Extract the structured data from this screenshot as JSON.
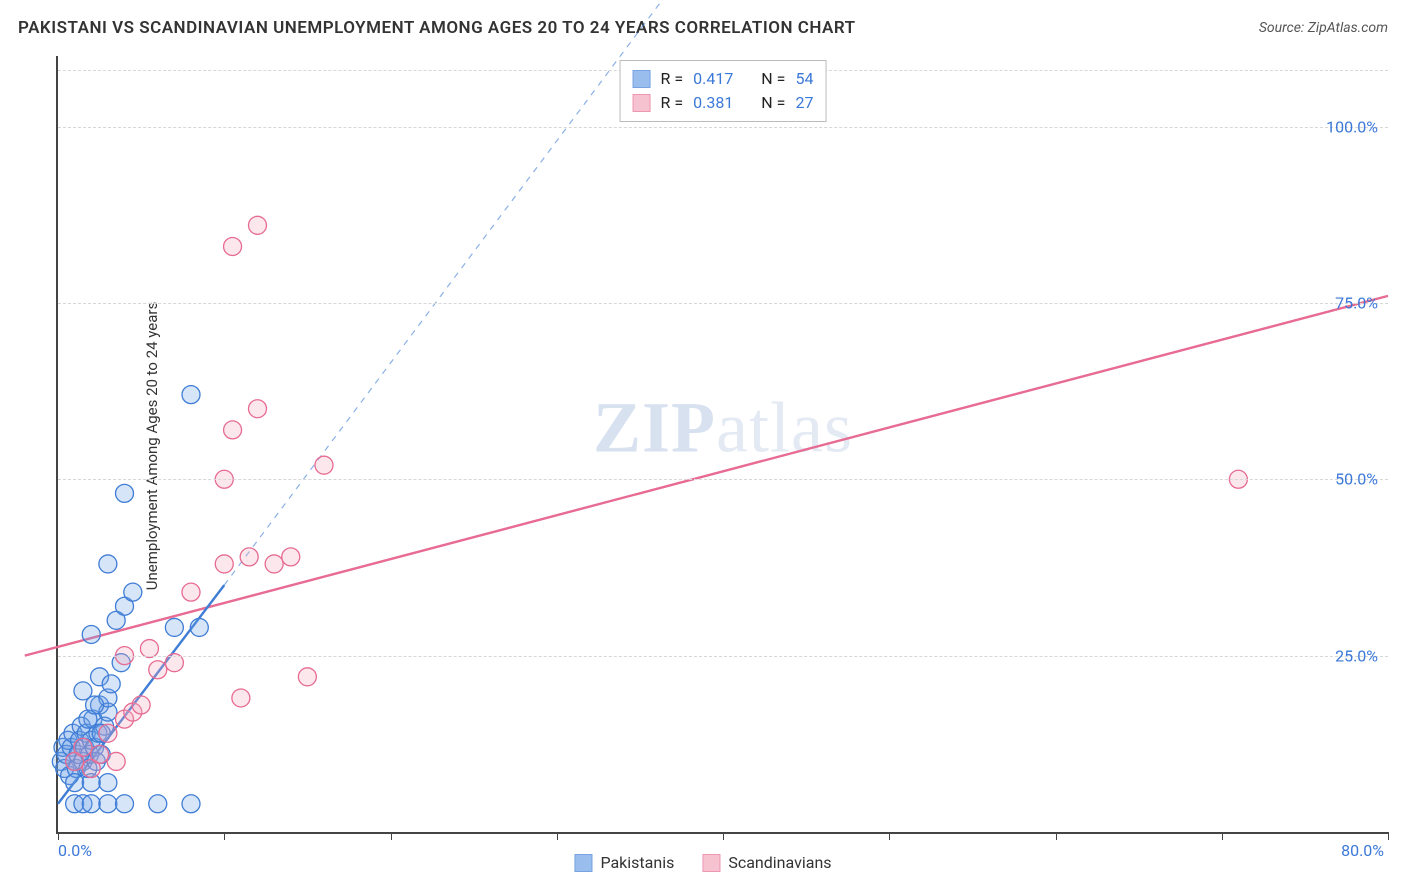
{
  "title": "PAKISTANI VS SCANDINAVIAN UNEMPLOYMENT AMONG AGES 20 TO 24 YEARS CORRELATION CHART",
  "source": "Source: ZipAtlas.com",
  "y_axis_label": "Unemployment Among Ages 20 to 24 years",
  "watermark": {
    "zip": "ZIP",
    "atlas": "atlas"
  },
  "chart": {
    "type": "scatter",
    "background_color": "#ffffff",
    "axis_color": "#444444",
    "grid_color": "#d7d7d7",
    "tick_label_color": "#3b78d8",
    "tick_label_fontsize": 16,
    "xlim": [
      0,
      80
    ],
    "ylim": [
      0,
      110
    ],
    "x_ticks": [
      0,
      10,
      20,
      30,
      40,
      50,
      60,
      70,
      80
    ],
    "y_grid": [
      25,
      50,
      75,
      100
    ],
    "x_min_label": "0.0%",
    "x_max_label": "80.0%",
    "y_tick_labels": [
      "25.0%",
      "50.0%",
      "75.0%",
      "100.0%"
    ],
    "marker_radius": 9,
    "marker_stroke_width": 1.3,
    "marker_fill_opacity": 0.28,
    "series": [
      {
        "name": "Pakistanis",
        "color": "#6ea3e6",
        "stroke": "#3f7dd6",
        "R": "0.417",
        "N": "54",
        "trend": {
          "x1": 0,
          "y1": 4,
          "x2": 10,
          "y2": 35,
          "dash_to_x": 37,
          "dash_to_y": 120,
          "stroke_width": 2.4
        },
        "points": [
          [
            0.2,
            10
          ],
          [
            0.3,
            12
          ],
          [
            0.4,
            9
          ],
          [
            0.5,
            11
          ],
          [
            0.6,
            13
          ],
          [
            0.7,
            8
          ],
          [
            0.8,
            12
          ],
          [
            0.9,
            14
          ],
          [
            1.0,
            10
          ],
          [
            1.1,
            9
          ],
          [
            1.2,
            11
          ],
          [
            1.3,
            13
          ],
          [
            1.4,
            15
          ],
          [
            1.5,
            10
          ],
          [
            1.6,
            12
          ],
          [
            1.7,
            14
          ],
          [
            1.8,
            9
          ],
          [
            1.9,
            11
          ],
          [
            2.0,
            13
          ],
          [
            2.1,
            16
          ],
          [
            2.2,
            12
          ],
          [
            2.3,
            10
          ],
          [
            2.4,
            14
          ],
          [
            2.5,
            18
          ],
          [
            2.6,
            11
          ],
          [
            2.8,
            15
          ],
          [
            3.0,
            17
          ],
          [
            1.0,
            4
          ],
          [
            1.5,
            4
          ],
          [
            2.0,
            4
          ],
          [
            3.0,
            4
          ],
          [
            4.0,
            4
          ],
          [
            6.0,
            4
          ],
          [
            8.0,
            4
          ],
          [
            1.0,
            7
          ],
          [
            2.0,
            7
          ],
          [
            3.0,
            7
          ],
          [
            1.5,
            20
          ],
          [
            2.5,
            22
          ],
          [
            3.0,
            19
          ],
          [
            2.0,
            28
          ],
          [
            3.5,
            30
          ],
          [
            4.0,
            32
          ],
          [
            3.0,
            38
          ],
          [
            4.5,
            34
          ],
          [
            7.0,
            29
          ],
          [
            8.5,
            29
          ],
          [
            4.0,
            48
          ],
          [
            8.0,
            62
          ],
          [
            1.8,
            16
          ],
          [
            2.2,
            18
          ],
          [
            2.6,
            14
          ],
          [
            3.2,
            21
          ],
          [
            3.8,
            24
          ]
        ]
      },
      {
        "name": "Scandinavians",
        "color": "#f4a9bd",
        "stroke": "#e76b92",
        "R": "0.381",
        "N": "27",
        "trend": {
          "x1": -2,
          "y1": 25,
          "x2": 80,
          "y2": 76,
          "stroke_width": 2.4
        },
        "points": [
          [
            1.0,
            10
          ],
          [
            1.5,
            12
          ],
          [
            2.0,
            9
          ],
          [
            2.5,
            11
          ],
          [
            3.0,
            14
          ],
          [
            3.5,
            10
          ],
          [
            4.0,
            16
          ],
          [
            4.5,
            17
          ],
          [
            5.0,
            18
          ],
          [
            4.0,
            25
          ],
          [
            5.5,
            26
          ],
          [
            6.0,
            23
          ],
          [
            7.0,
            24
          ],
          [
            11.0,
            19
          ],
          [
            15.0,
            22
          ],
          [
            8.0,
            34
          ],
          [
            10.0,
            38
          ],
          [
            11.5,
            39
          ],
          [
            13.0,
            38
          ],
          [
            14.0,
            39
          ],
          [
            10.0,
            50
          ],
          [
            16.0,
            52
          ],
          [
            10.5,
            57
          ],
          [
            12.0,
            60
          ],
          [
            10.5,
            83
          ],
          [
            12.0,
            86
          ],
          [
            71.0,
            50
          ]
        ]
      }
    ]
  },
  "legend_top": {
    "border_color": "#bbbbbb",
    "bg": "#ffffff",
    "label_R": "R =",
    "label_N": "N ="
  },
  "legend_bottom": {
    "items": [
      "Pakistanis",
      "Scandinavians"
    ]
  }
}
